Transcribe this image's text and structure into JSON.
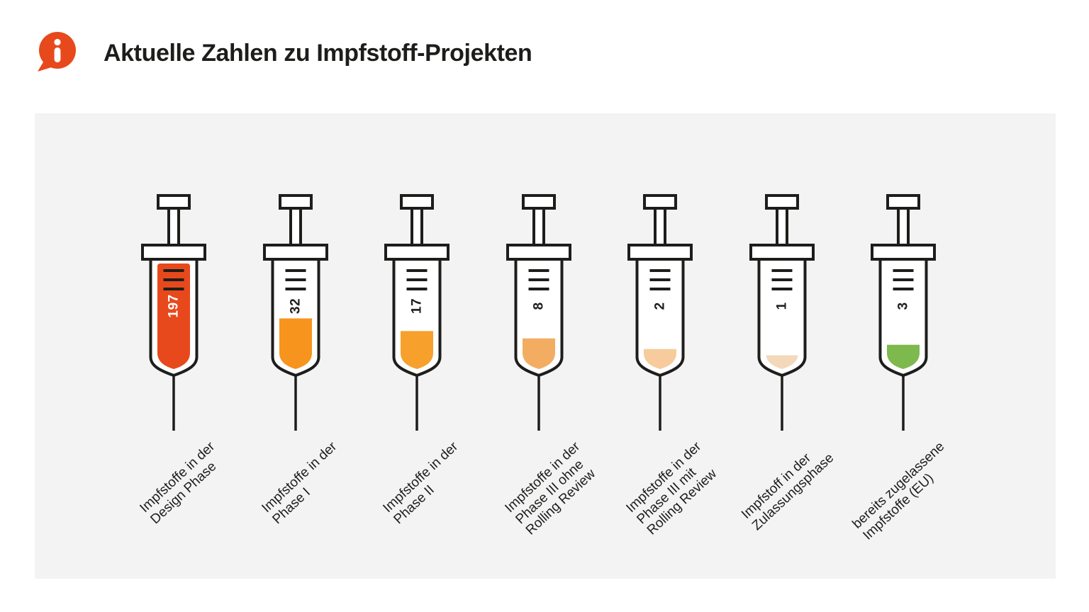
{
  "title": "Aktuelle Zahlen zu Impfstoff-Projekten",
  "icon": {
    "name": "info-speech-bubble-icon",
    "glyph": "i"
  },
  "colors": {
    "accent": "#e8491c",
    "panel_bg": "#f3f3f3",
    "ink": "#1d1d1b",
    "syringe_body": "#ffffff"
  },
  "chart_data": {
    "type": "bar",
    "variant": "pictorial-syringe-infographic",
    "title": "Aktuelle Zahlen zu Impfstoff-Projekten",
    "legend": false,
    "axes": false,
    "categories": [
      "Impfstoffe in der Design Phase",
      "Impfstoffe in der Phase I",
      "Impfstoffe in der Phase II",
      "Impfstoffe in der Phase III ohne Rolling Review",
      "Impfstoffe in der Phase III mit Rolling Review",
      "Impfstoff in der Zulassungsphase",
      "bereits zugelassene Impfstoffe (EU)"
    ],
    "values": [
      197,
      32,
      17,
      8,
      2,
      1,
      3
    ],
    "bars": [
      {
        "value": "197",
        "label_lines": [
          "Impfstoffe in der",
          "Design Phase"
        ],
        "fill_color": "#e8491c",
        "fill_fraction": 1.0,
        "value_color": "#ffffff"
      },
      {
        "value": "32",
        "label_lines": [
          "Impfstoffe in der",
          "Phase I"
        ],
        "fill_color": "#f7941d",
        "fill_fraction": 0.48,
        "value_color": "#1d1d1b"
      },
      {
        "value": "17",
        "label_lines": [
          "Impfstoffe in der",
          "Phase II"
        ],
        "fill_color": "#f7a02c",
        "fill_fraction": 0.36,
        "value_color": "#1d1d1b"
      },
      {
        "value": "8",
        "label_lines": [
          "Impfstoffe in der",
          "Phase III ohne",
          "Rolling Review"
        ],
        "fill_color": "#f3ad62",
        "fill_fraction": 0.29,
        "value_color": "#1d1d1b"
      },
      {
        "value": "2",
        "label_lines": [
          "Impfstoffe in der",
          "Phase III mit",
          "Rolling Review"
        ],
        "fill_color": "#f7cb9b",
        "fill_fraction": 0.19,
        "value_color": "#1d1d1b"
      },
      {
        "value": "1",
        "label_lines": [
          "Impfstoff in der",
          "Zulassungsphase"
        ],
        "fill_color": "#f3d9ba",
        "fill_fraction": 0.13,
        "value_color": "#1d1d1b"
      },
      {
        "value": "3",
        "label_lines": [
          "bereits zugelassene",
          "Impfstoffe (EU)"
        ],
        "fill_color": "#7eb94d",
        "fill_fraction": 0.23,
        "value_color": "#1d1d1b"
      }
    ]
  }
}
